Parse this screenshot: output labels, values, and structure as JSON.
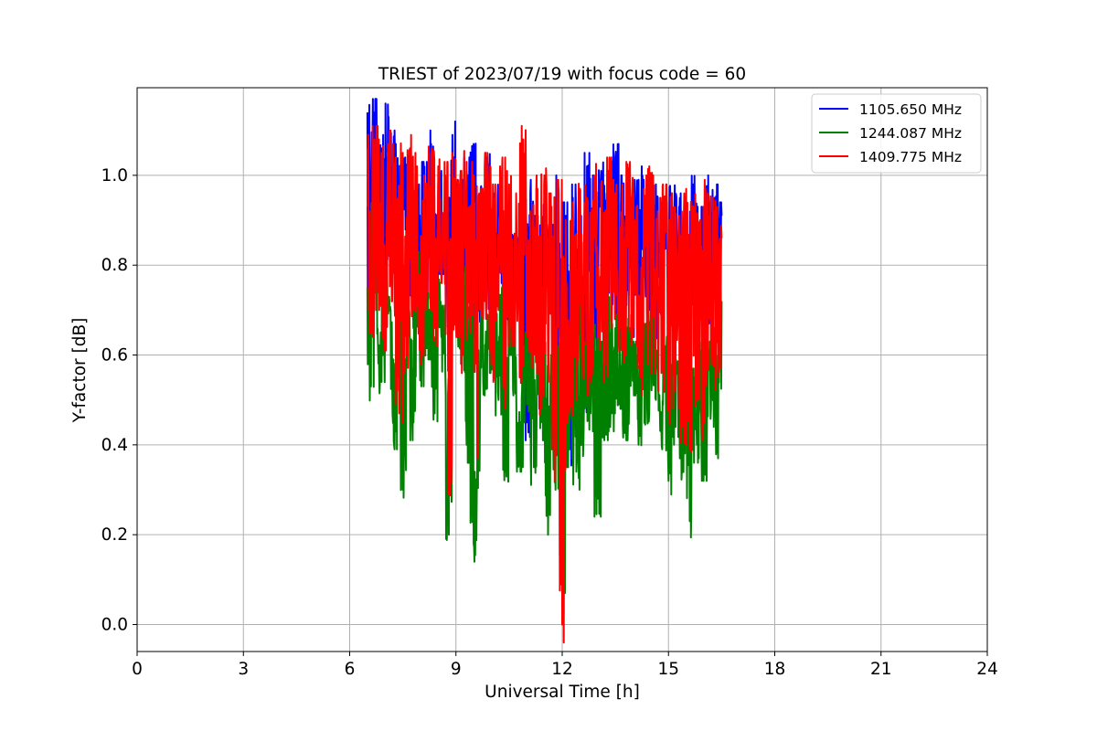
{
  "chart_data": {
    "type": "line",
    "title": "TRIEST of 2023/07/19 with focus code = 60",
    "xlabel": "Universal Time [h]",
    "ylabel": "Y-factor [dB]",
    "xlim": [
      0,
      24
    ],
    "ylim": [
      -0.06,
      1.195
    ],
    "xticks": [
      0,
      3,
      6,
      9,
      12,
      15,
      18,
      21,
      24
    ],
    "yticks": [
      0.0,
      0.2,
      0.4,
      0.6,
      0.8,
      1.0
    ],
    "ytick_labels": [
      "0.0",
      "0.2",
      "0.4",
      "0.6",
      "0.8",
      "1.0"
    ],
    "grid": true,
    "legend_position": "top-right",
    "series": [
      {
        "name": "1105.650 MHz",
        "color": "#0000ff",
        "x": [
          6.5,
          6.6,
          6.7,
          6.8,
          6.9,
          7.0,
          7.1,
          7.2,
          7.3,
          7.4,
          7.5,
          7.6,
          7.7,
          7.8,
          7.9,
          8.0,
          8.1,
          8.2,
          8.3,
          8.4,
          8.5,
          8.6,
          8.7,
          8.8,
          8.9,
          9.0,
          9.1,
          9.2,
          9.3,
          9.4,
          9.5,
          9.6,
          9.7,
          9.8,
          9.9,
          10.0,
          10.1,
          10.2,
          10.3,
          10.4,
          10.5,
          10.6,
          10.7,
          10.8,
          10.9,
          11.0,
          11.1,
          11.2,
          11.3,
          11.4,
          11.5,
          11.6,
          11.7,
          11.8,
          11.9,
          12.0,
          12.1,
          12.2,
          12.3,
          12.4,
          12.5,
          12.6,
          12.7,
          12.8,
          12.9,
          13.0,
          13.1,
          13.2,
          13.3,
          13.4,
          13.5,
          13.6,
          13.7,
          13.8,
          13.9,
          14.0,
          14.1,
          14.2,
          14.3,
          14.4,
          14.5,
          14.6,
          14.7,
          14.8,
          14.9,
          15.0,
          15.1,
          15.2,
          15.3,
          15.4,
          15.5,
          15.6,
          15.7,
          15.8,
          15.9,
          16.0,
          16.1,
          16.2,
          16.3,
          16.4,
          16.5
        ],
        "values": [
          1.14,
          0.78,
          1.14,
          0.82,
          1.06,
          0.8,
          1.13,
          0.85,
          1.07,
          0.74,
          1.01,
          0.82,
          1.02,
          0.66,
          0.95,
          0.78,
          1.0,
          0.7,
          1.07,
          0.75,
          0.98,
          0.82,
          0.92,
          0.7,
          1.09,
          0.78,
          0.96,
          0.73,
          1.01,
          0.71,
          1.07,
          0.59,
          0.97,
          0.77,
          1.02,
          0.69,
          0.96,
          0.8,
          0.92,
          0.66,
          0.9,
          0.76,
          0.84,
          0.68,
          1.05,
          0.45,
          0.96,
          0.72,
          0.88,
          0.52,
          0.94,
          0.8,
          0.86,
          0.47,
          0.97,
          0.6,
          0.91,
          0.39,
          0.95,
          0.6,
          0.88,
          0.44,
          1.02,
          0.71,
          0.97,
          0.66,
          1.01,
          0.72,
          0.95,
          0.7,
          1.04,
          0.63,
          0.97,
          0.75,
          0.98,
          0.68,
          0.96,
          0.71,
          0.99,
          0.74,
          0.93,
          0.66,
          0.95,
          0.73,
          0.91,
          0.79,
          0.96,
          0.7,
          0.93,
          0.76,
          0.9,
          0.73,
          0.98,
          0.69,
          0.9,
          0.77,
          0.97,
          0.71,
          0.95,
          0.79,
          0.91
        ],
        "note_range": "1.14"
      },
      {
        "name": "1244.087 MHz",
        "color": "#008000",
        "x": [
          6.5,
          6.6,
          6.7,
          6.8,
          6.9,
          7.0,
          7.1,
          7.2,
          7.3,
          7.4,
          7.5,
          7.6,
          7.7,
          7.8,
          7.9,
          8.0,
          8.1,
          8.2,
          8.3,
          8.4,
          8.5,
          8.6,
          8.7,
          8.8,
          8.9,
          9.0,
          9.1,
          9.2,
          9.3,
          9.4,
          9.5,
          9.6,
          9.7,
          9.8,
          9.9,
          10.0,
          10.1,
          10.2,
          10.3,
          10.4,
          10.5,
          10.6,
          10.7,
          10.8,
          10.9,
          11.0,
          11.1,
          11.2,
          11.3,
          11.4,
          11.5,
          11.6,
          11.7,
          11.8,
          11.9,
          12.0,
          12.1,
          12.2,
          12.3,
          12.4,
          12.5,
          12.6,
          12.7,
          12.8,
          12.9,
          13.0,
          13.1,
          13.2,
          13.3,
          13.4,
          13.5,
          13.6,
          13.7,
          13.8,
          13.9,
          14.0,
          14.1,
          14.2,
          14.3,
          14.4,
          14.5,
          14.6,
          14.7,
          14.8,
          14.9,
          15.0,
          15.1,
          15.2,
          15.3,
          15.4,
          15.5,
          15.6,
          15.7,
          15.8,
          15.9,
          16.0,
          16.1,
          16.2,
          16.3,
          16.4,
          16.5
        ],
        "values": [
          0.75,
          0.53,
          0.95,
          0.62,
          0.54,
          0.78,
          0.7,
          0.56,
          0.43,
          0.8,
          0.3,
          0.77,
          0.62,
          0.45,
          0.8,
          0.57,
          0.7,
          0.63,
          0.8,
          0.47,
          0.74,
          0.68,
          0.57,
          0.2,
          0.72,
          0.75,
          0.62,
          0.77,
          0.4,
          0.73,
          0.18,
          0.31,
          0.74,
          0.55,
          0.66,
          0.6,
          0.71,
          0.5,
          0.75,
          0.34,
          0.7,
          0.64,
          0.55,
          0.38,
          0.62,
          0.49,
          0.67,
          0.35,
          0.61,
          0.45,
          0.64,
          0.2,
          0.57,
          0.34,
          0.62,
          0.11,
          0.57,
          0.39,
          0.62,
          0.34,
          0.72,
          0.41,
          0.6,
          0.47,
          0.65,
          0.28,
          0.62,
          0.45,
          0.7,
          0.47,
          0.66,
          0.52,
          0.63,
          0.45,
          0.66,
          0.55,
          0.6,
          0.42,
          0.64,
          0.48,
          0.7,
          0.54,
          0.58,
          0.43,
          0.62,
          0.32,
          0.58,
          0.44,
          0.56,
          0.35,
          0.6,
          0.23,
          0.54,
          0.4,
          0.61,
          0.36,
          0.6,
          0.48,
          0.66,
          0.37,
          0.72
        ]
      },
      {
        "name": "1409.775 MHz",
        "color": "#ff0000",
        "x": [
          6.5,
          6.6,
          6.7,
          6.8,
          6.9,
          7.0,
          7.1,
          7.2,
          7.3,
          7.4,
          7.5,
          7.6,
          7.7,
          7.8,
          7.9,
          8.0,
          8.1,
          8.2,
          8.3,
          8.4,
          8.5,
          8.6,
          8.7,
          8.8,
          8.9,
          9.0,
          9.1,
          9.2,
          9.3,
          9.4,
          9.5,
          9.6,
          9.7,
          9.8,
          9.9,
          10.0,
          10.1,
          10.2,
          10.3,
          10.4,
          10.5,
          10.6,
          10.7,
          10.8,
          10.9,
          11.0,
          11.1,
          11.2,
          11.3,
          11.4,
          11.5,
          11.6,
          11.7,
          11.8,
          11.9,
          12.0,
          12.1,
          12.2,
          12.3,
          12.4,
          12.5,
          12.6,
          12.7,
          12.8,
          12.9,
          13.0,
          13.1,
          13.2,
          13.3,
          13.4,
          13.5,
          13.6,
          13.7,
          13.8,
          13.9,
          14.0,
          14.1,
          14.2,
          14.3,
          14.4,
          14.5,
          14.6,
          14.7,
          14.8,
          14.9,
          15.0,
          15.1,
          15.2,
          15.3,
          15.4,
          15.5,
          15.6,
          15.7,
          15.8,
          15.9,
          16.0,
          16.1,
          16.2,
          16.3,
          16.4,
          16.5
        ],
        "values": [
          1.06,
          0.68,
          1.08,
          0.74,
          1.05,
          0.65,
          1.07,
          0.72,
          1.04,
          0.47,
          1.05,
          0.6,
          1.06,
          0.7,
          1.02,
          0.62,
          1.0,
          0.74,
          1.05,
          0.66,
          1.02,
          0.76,
          1.0,
          0.29,
          1.05,
          0.68,
          0.98,
          0.6,
          1.03,
          0.65,
          1.0,
          0.37,
          0.97,
          0.72,
          1.02,
          0.58,
          0.95,
          0.7,
          1.01,
          0.48,
          0.98,
          0.66,
          0.96,
          0.55,
          1.08,
          0.64,
          0.92,
          0.6,
          0.97,
          0.48,
          1.0,
          0.58,
          0.93,
          0.32,
          0.96,
          0.0,
          0.9,
          0.48,
          0.94,
          0.5,
          0.97,
          0.58,
          0.95,
          0.54,
          1.0,
          0.64,
          0.98,
          0.58,
          1.01,
          0.66,
          0.96,
          0.62,
          0.98,
          0.6,
          1.0,
          0.64,
          0.93,
          0.55,
          0.97,
          0.62,
          0.99,
          0.6,
          0.92,
          0.56,
          0.95,
          0.48,
          0.96,
          0.52,
          0.91,
          0.44,
          0.97,
          0.39,
          0.93,
          0.5,
          0.9,
          0.45,
          0.96,
          0.58,
          0.92,
          0.55,
          0.86
        ]
      }
    ]
  }
}
